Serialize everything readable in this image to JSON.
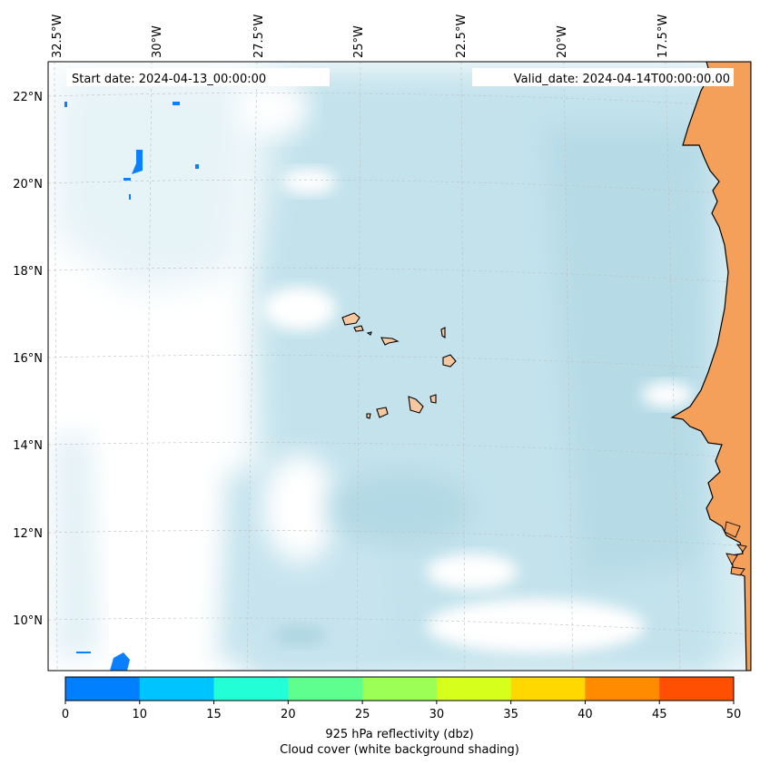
{
  "map": {
    "top_labels": [
      "32.5°W",
      "30°W",
      "27.5°W",
      "25°W",
      "22.5°W",
      "20°W",
      "17.5°W"
    ],
    "left_labels": [
      "22°N",
      "20°N",
      "18°N",
      "16°N",
      "14°N",
      "12°N",
      "10°N"
    ],
    "start_date": "Start date: 2024-04-13_00:00:00",
    "valid_date": "Valid_date: 2024-04-14T00:00:00.00"
  },
  "colorbar": {
    "ticks": [
      "0",
      "10",
      "15",
      "20",
      "25",
      "30",
      "35",
      "40",
      "45",
      "50"
    ],
    "colors": [
      "#007fff",
      "#00c4ff",
      "#22ffd6",
      "#5fff8f",
      "#9bff55",
      "#d7ff1c",
      "#ffd800",
      "#ff8c00",
      "#ff4f00"
    ],
    "label_line1": "925 hPa reflectivity (dbz)",
    "label_line2": "Cloud cover (white background shading)"
  },
  "palette": {
    "cloud_light": "#e4f2f7",
    "cloud_mid": "#cfe8f0",
    "cloud_dark": "#b3dbe7",
    "land": "#f5a05a",
    "island": "#f7c89f",
    "reflectivity_low": "#0a7fff"
  }
}
